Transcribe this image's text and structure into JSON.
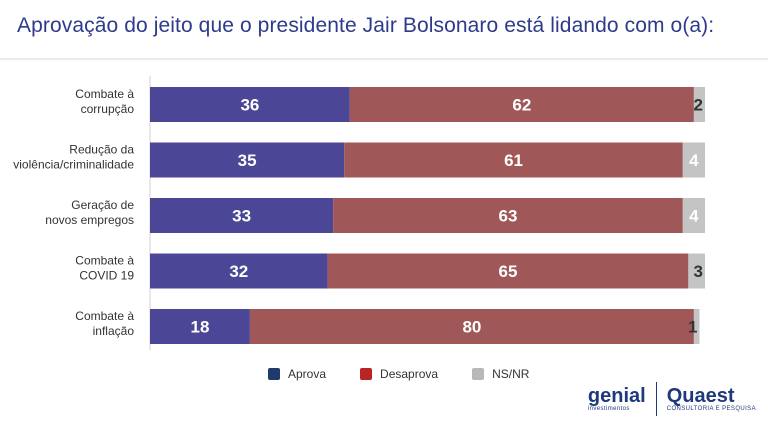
{
  "title": "Aprovação do jeito que o presidente Jair Bolsonaro está lidando com o(a):",
  "legend": [
    {
      "label": "Aprova",
      "color": "#1f3a6b"
    },
    {
      "label": "Desaprova",
      "color": "#b82525"
    },
    {
      "label": "NS/NR",
      "color": "#b8b8b8"
    }
  ],
  "logos": {
    "left": {
      "name": "genial",
      "sub": "investimentos"
    },
    "right": {
      "name": "Quaest",
      "sub": "CONSULTORIA E PESQUISA"
    }
  },
  "chart_data": {
    "type": "bar",
    "orientation": "horizontal",
    "stacked": true,
    "title": "Aprovação do jeito que o presidente Jair Bolsonaro está lidando com o(a):",
    "categories": [
      [
        "Combate à",
        "corrupção"
      ],
      [
        "Redução da",
        "violência/criminalidade"
      ],
      [
        "Geração de",
        "novos empregos"
      ],
      [
        "Combate à",
        "COVID 19"
      ],
      [
        "Combate à",
        "inflação"
      ]
    ],
    "series": [
      {
        "name": "Aprova",
        "color": "#4b4796",
        "values": [
          36,
          35,
          33,
          32,
          18
        ]
      },
      {
        "name": "Desaprova",
        "color": "#a05758",
        "values": [
          62,
          61,
          63,
          65,
          80
        ]
      },
      {
        "name": "NS/NR",
        "color": "#c4c4c4",
        "values": [
          2,
          4,
          4,
          3,
          1
        ]
      }
    ],
    "xlim": [
      0,
      100
    ],
    "legend_position": "bottom"
  }
}
